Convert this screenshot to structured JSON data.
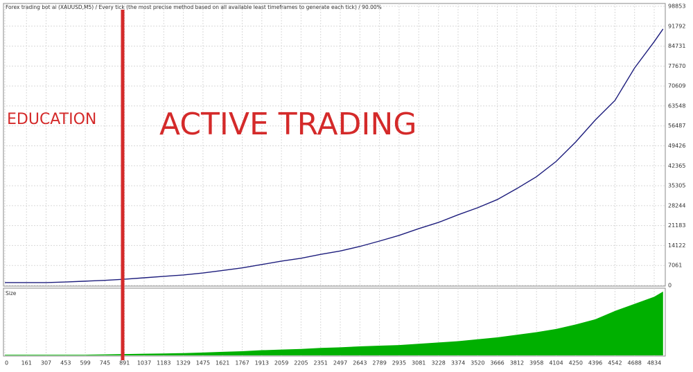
{
  "chart_data": {
    "type": "line",
    "title": "Forex trading bot ai (XAUUSD,M5) / Every tick (the most precise method based on all available least timeframes to generate each tick) / 90.00%",
    "annotations": [
      "EDUCATION",
      "ACTIVE TRADING"
    ],
    "annotation_color": "#d42a2a",
    "divider_x": 877,
    "x": [
      0,
      161,
      307,
      453,
      599,
      745,
      891,
      1037,
      1183,
      1329,
      1475,
      1621,
      1767,
      1913,
      2059,
      2205,
      2351,
      2497,
      2643,
      2789,
      2935,
      3081,
      3228,
      3374,
      3520,
      3666,
      3812,
      3958,
      4104,
      4250,
      4396,
      4542,
      4688,
      4834,
      4900
    ],
    "series": [
      {
        "color": "#1c1c7c",
        "values": [
          1000,
          1000,
          1000,
          1200,
          1500,
          1800,
          2200,
          2700,
          3200,
          3700,
          4400,
          5300,
          6200,
          7400,
          8600,
          9600,
          11000,
          12200,
          13800,
          15700,
          17700,
          20100,
          22300,
          25000,
          27500,
          30400,
          34300,
          38500,
          43900,
          50800,
          58600,
          65500,
          77000,
          86300,
          90800
        ]
      }
    ],
    "size_series": {
      "name": "Size",
      "color": "#00b000",
      "ylim": [
        0,
        100
      ],
      "values": [
        1,
        1,
        1,
        1,
        1,
        1.5,
        2,
        2.5,
        3,
        3.5,
        4.5,
        5.5,
        6.5,
        8,
        9,
        10,
        11.5,
        12.5,
        14,
        15,
        16,
        18,
        20,
        22,
        25,
        28,
        32,
        36,
        41,
        48,
        56,
        69,
        80,
        91,
        99
      ]
    },
    "xlim": [
      0,
      4920
    ],
    "xticks": [
      0,
      161,
      307,
      453,
      599,
      745,
      891,
      1037,
      1183,
      1329,
      1475,
      1621,
      1767,
      1913,
      2059,
      2205,
      2351,
      2497,
      2643,
      2789,
      2935,
      3081,
      3228,
      3374,
      3520,
      3666,
      3812,
      3958,
      4104,
      4250,
      4396,
      4542,
      4688,
      4834
    ],
    "ylim": [
      0,
      98853
    ],
    "yticks": [
      0,
      7061,
      14122,
      21183,
      28244,
      35305,
      42365,
      49426,
      56487,
      63548,
      70609,
      77670,
      84731,
      91792,
      98853
    ],
    "grid": true
  }
}
